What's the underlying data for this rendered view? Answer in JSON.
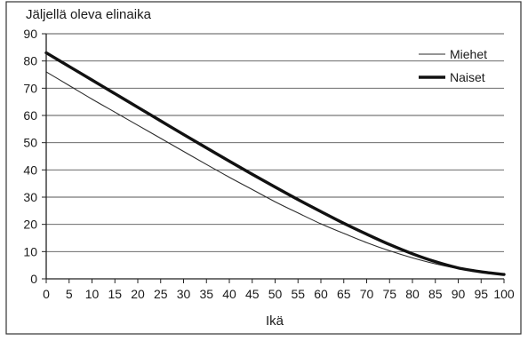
{
  "chart_data": {
    "type": "line",
    "title": "",
    "ylabel": "Jäljellä oleva elinaika",
    "xlabel": "Ikä",
    "xlim": [
      0,
      100
    ],
    "ylim": [
      0,
      90
    ],
    "x_ticks": [
      0,
      5,
      10,
      15,
      20,
      25,
      30,
      35,
      40,
      45,
      50,
      55,
      60,
      65,
      70,
      75,
      80,
      85,
      90,
      95,
      100
    ],
    "y_ticks": [
      0,
      10,
      20,
      30,
      40,
      50,
      60,
      70,
      80,
      90
    ],
    "grid": "horizontal",
    "legend_position": "top-right",
    "x": [
      0,
      5,
      10,
      15,
      20,
      25,
      30,
      35,
      40,
      45,
      50,
      55,
      60,
      65,
      70,
      75,
      80,
      85,
      90,
      95,
      100
    ],
    "series": [
      {
        "name": "Miehet",
        "line_weight": "thin",
        "color": "#2b2b2b",
        "values": [
          76,
          71,
          66,
          61.2,
          56.4,
          51.6,
          46.8,
          42,
          37.3,
          32.8,
          28.3,
          24.2,
          20.2,
          16.7,
          13.3,
          10.3,
          7.7,
          5.5,
          3.8,
          2.6,
          1.7
        ]
      },
      {
        "name": "Naiset",
        "line_weight": "thick",
        "color": "#111111",
        "values": [
          83,
          78,
          73,
          68,
          63,
          58,
          53,
          48.1,
          43.2,
          38.4,
          33.7,
          29.1,
          24.7,
          20.4,
          16.4,
          12.6,
          9.2,
          6.3,
          4,
          2.6,
          1.6
        ]
      }
    ]
  }
}
